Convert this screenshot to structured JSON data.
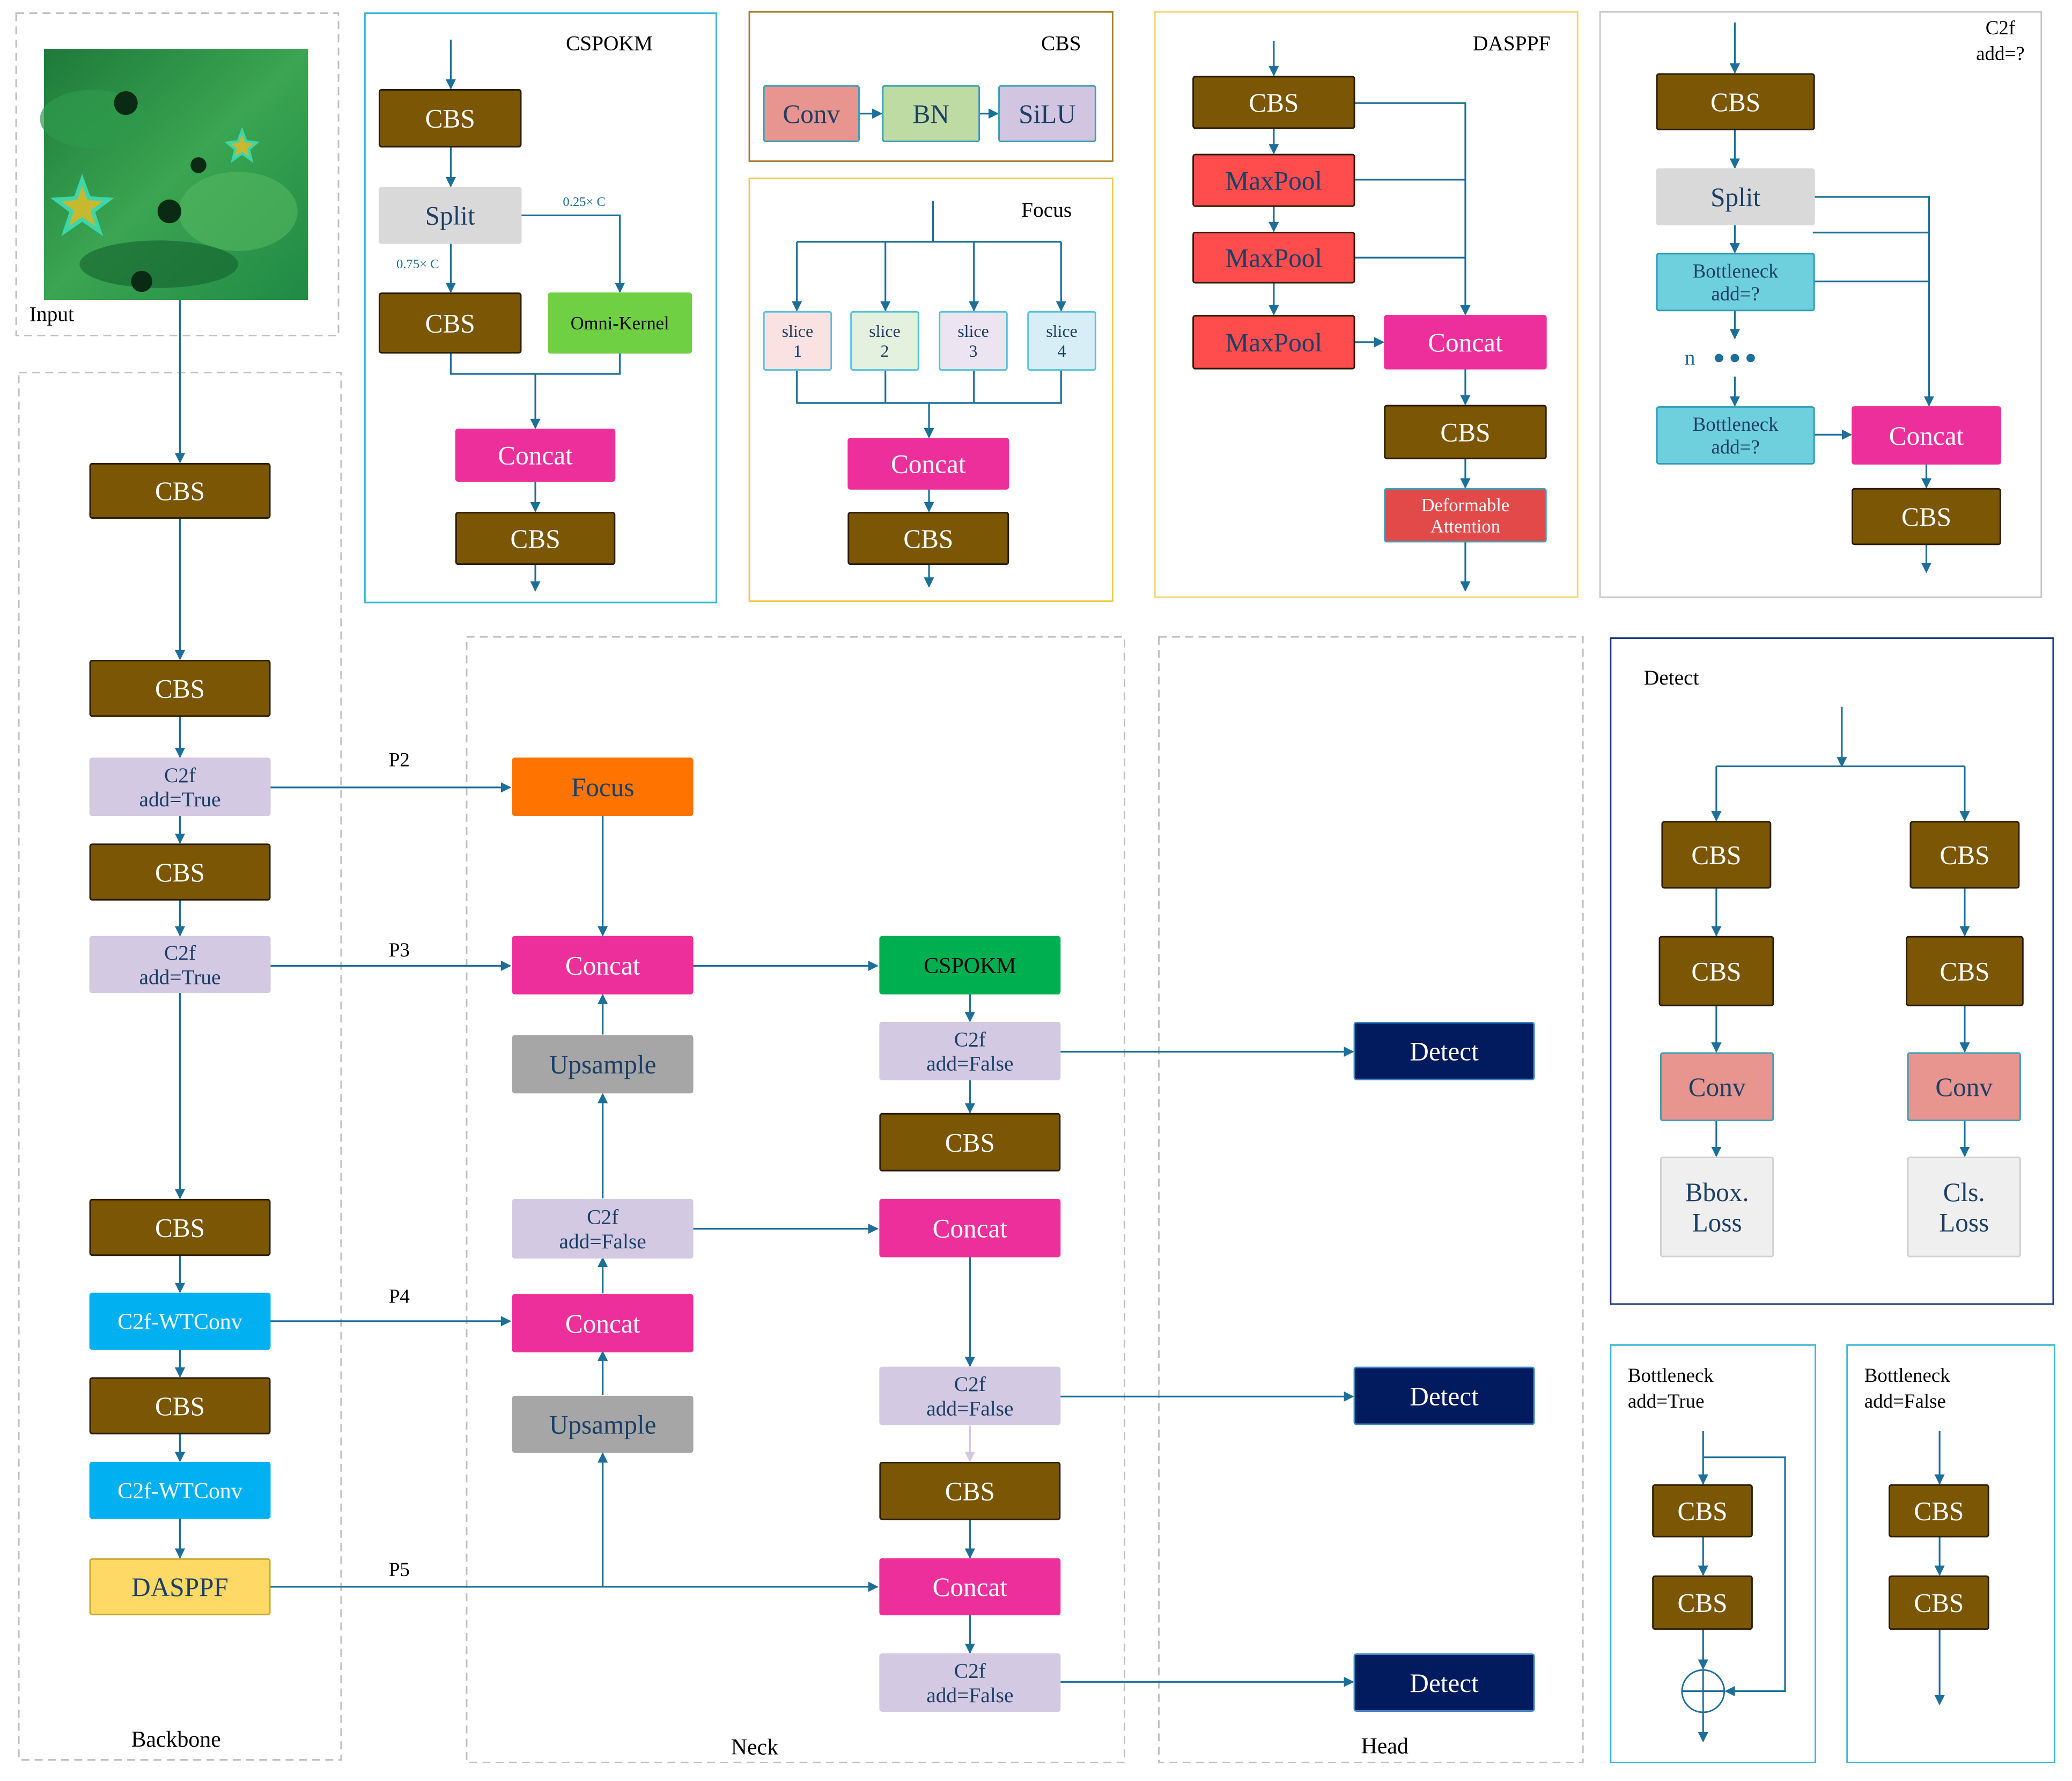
{
  "input": {
    "label": "Input"
  },
  "sections": {
    "backbone": "Backbone",
    "neck": "Neck",
    "head": "Head",
    "cspokm": "CSPOKM",
    "cbs": "CBS",
    "focus": "Focus",
    "dasppf": "DASPPF",
    "c2f": "C2f\nadd=?",
    "detect": "Detect",
    "bottleneck_true": "Bottleneck\nadd=True",
    "bottleneck_false": "Bottleneck\nadd=False"
  },
  "edge_labels": {
    "p2": "P2",
    "p3": "P3",
    "p4": "P4",
    "p5": "P5",
    "split_quarter": "0.25× C",
    "split_three_quarter": "0.75× C",
    "n": "n"
  },
  "colors": {
    "cbs": "#7b5604",
    "c2f": "#d3c9e2",
    "wtconv": "#00b0f0",
    "dasppf": "#ffd966",
    "focus": "#ff7300",
    "concat": "#ed2f9c",
    "upsample": "#a6a6a6",
    "cspokm": "#00b050",
    "detect": "#021a5e",
    "split": "#d9d9d9",
    "omni": "#70d044",
    "conv": "#e8948f",
    "bn": "#bddba3",
    "silu": "#d2c5e2",
    "maxpool": "#ff4d4d",
    "deform": "#e24a4a",
    "bottleneck": "#6ed0dc",
    "loss": "#efefef",
    "arrow": "#1c6f99"
  },
  "nodes": [
    {
      "id": "bb_cbs1",
      "text": "CBS",
      "style": "cbs",
      "name": "backbone-cbs-1"
    },
    {
      "id": "bb_cbs2",
      "text": "CBS",
      "style": "cbs",
      "name": "backbone-cbs-2"
    },
    {
      "id": "bb_c2f1",
      "text": "C2f\nadd=True",
      "style": "c2f",
      "name": "backbone-c2f-1"
    },
    {
      "id": "bb_cbs3",
      "text": "CBS",
      "style": "cbs",
      "name": "backbone-cbs-3"
    },
    {
      "id": "bb_c2f2",
      "text": "C2f\nadd=True",
      "style": "c2f",
      "name": "backbone-c2f-2"
    },
    {
      "id": "bb_cbs4",
      "text": "CBS",
      "style": "cbs",
      "name": "backbone-cbs-4"
    },
    {
      "id": "bb_wt1",
      "text": "C2f-WTConv",
      "style": "wtconv",
      "name": "backbone-c2f-wtconv-1"
    },
    {
      "id": "bb_cbs5",
      "text": "CBS",
      "style": "cbs",
      "name": "backbone-cbs-5"
    },
    {
      "id": "bb_wt2",
      "text": "C2f-WTConv",
      "style": "wtconv",
      "name": "backbone-c2f-wtconv-2"
    },
    {
      "id": "bb_dasppf",
      "text": "DASPPF",
      "style": "dasppf",
      "name": "backbone-dasppf"
    },
    {
      "id": "nk_focus",
      "text": "Focus",
      "style": "focus",
      "name": "neck-focus"
    },
    {
      "id": "nk_concat1",
      "text": "Concat",
      "style": "concat",
      "name": "neck-concat-1"
    },
    {
      "id": "nk_up1",
      "text": "Upsample",
      "style": "upsample",
      "name": "neck-upsample-1"
    },
    {
      "id": "nk_c2fa",
      "text": "C2f\nadd=False",
      "style": "c2f",
      "name": "neck-c2f-a"
    },
    {
      "id": "nk_concat2",
      "text": "Concat",
      "style": "concat",
      "name": "neck-concat-2"
    },
    {
      "id": "nk_up2",
      "text": "Upsample",
      "style": "upsample",
      "name": "neck-upsample-2"
    },
    {
      "id": "nk_cspokm",
      "text": "CSPOKM",
      "style": "cspokm",
      "name": "neck-cspokm"
    },
    {
      "id": "nk_c2fb",
      "text": "C2f\nadd=False",
      "style": "c2f",
      "name": "neck-c2f-b"
    },
    {
      "id": "nk_cbs1",
      "text": "CBS",
      "style": "cbs",
      "name": "neck-cbs-1"
    },
    {
      "id": "nk_concat3",
      "text": "Concat",
      "style": "concat",
      "name": "neck-concat-3"
    },
    {
      "id": "nk_c2fc",
      "text": "C2f\nadd=False",
      "style": "c2f",
      "name": "neck-c2f-c"
    },
    {
      "id": "nk_cbs2",
      "text": "CBS",
      "style": "cbs",
      "name": "neck-cbs-2"
    },
    {
      "id": "nk_concat4",
      "text": "Concat",
      "style": "concat",
      "name": "neck-concat-4"
    },
    {
      "id": "nk_c2fd",
      "text": "C2f\nadd=False",
      "style": "c2f",
      "name": "neck-c2f-d"
    },
    {
      "id": "hd_det1",
      "text": "Detect",
      "style": "detect",
      "name": "head-detect-1"
    },
    {
      "id": "hd_det2",
      "text": "Detect",
      "style": "detect",
      "name": "head-detect-2"
    },
    {
      "id": "hd_det3",
      "text": "Detect",
      "style": "detect",
      "name": "head-detect-3"
    },
    {
      "id": "csp_cbs1",
      "text": "CBS",
      "style": "cbs",
      "name": "cspokm-cbs-1"
    },
    {
      "id": "csp_split",
      "text": "Split",
      "style": "split",
      "name": "cspokm-split"
    },
    {
      "id": "csp_cbs2",
      "text": "CBS",
      "style": "cbs",
      "name": "cspokm-cbs-2"
    },
    {
      "id": "csp_omni",
      "text": "Omni-Kernel",
      "style": "omni",
      "name": "cspokm-omni-kernel"
    },
    {
      "id": "csp_concat",
      "text": "Concat",
      "style": "concat",
      "name": "cspokm-concat"
    },
    {
      "id": "csp_cbs3",
      "text": "CBS",
      "style": "cbs",
      "name": "cspokm-cbs-3"
    },
    {
      "id": "cbs_conv",
      "text": "Conv",
      "style": "conv",
      "name": "cbs-def-conv"
    },
    {
      "id": "cbs_bn",
      "text": "BN",
      "style": "bn",
      "name": "cbs-def-bn"
    },
    {
      "id": "cbs_silu",
      "text": "SiLU",
      "style": "silu",
      "name": "cbs-def-silu"
    },
    {
      "id": "fc_s1",
      "text": "slice\n1",
      "style": "slice1",
      "name": "focus-slice-1"
    },
    {
      "id": "fc_s2",
      "text": "slice\n2",
      "style": "slice2",
      "name": "focus-slice-2"
    },
    {
      "id": "fc_s3",
      "text": "slice\n3",
      "style": "slice3",
      "name": "focus-slice-3"
    },
    {
      "id": "fc_s4",
      "text": "slice\n4",
      "style": "slice4",
      "name": "focus-slice-4"
    },
    {
      "id": "fc_concat",
      "text": "Concat",
      "style": "concat",
      "name": "focus-concat"
    },
    {
      "id": "fc_cbs",
      "text": "CBS",
      "style": "cbs",
      "name": "focus-cbs"
    },
    {
      "id": "ds_cbs1",
      "text": "CBS",
      "style": "cbs",
      "name": "dasppf-cbs-1"
    },
    {
      "id": "ds_mp1",
      "text": "MaxPool",
      "style": "maxpool",
      "name": "dasppf-maxpool-1"
    },
    {
      "id": "ds_mp2",
      "text": "MaxPool",
      "style": "maxpool",
      "name": "dasppf-maxpool-2"
    },
    {
      "id": "ds_mp3",
      "text": "MaxPool",
      "style": "maxpool",
      "name": "dasppf-maxpool-3"
    },
    {
      "id": "ds_concat",
      "text": "Concat",
      "style": "concat",
      "name": "dasppf-concat"
    },
    {
      "id": "ds_cbs2",
      "text": "CBS",
      "style": "cbs",
      "name": "dasppf-cbs-2"
    },
    {
      "id": "ds_deform",
      "text": "Deformable\nAttention",
      "style": "deform",
      "name": "dasppf-deformable-attention"
    },
    {
      "id": "c2_cbs1",
      "text": "CBS",
      "style": "cbs",
      "name": "c2f-cbs-1"
    },
    {
      "id": "c2_split",
      "text": "Split",
      "style": "split",
      "name": "c2f-split"
    },
    {
      "id": "c2_bn1",
      "text": "Bottleneck\nadd=?",
      "style": "bottleneck",
      "name": "c2f-bottleneck-1"
    },
    {
      "id": "c2_bn2",
      "text": "Bottleneck\nadd=?",
      "style": "bottleneck",
      "name": "c2f-bottleneck-n"
    },
    {
      "id": "c2_concat",
      "text": "Concat",
      "style": "concat",
      "name": "c2f-concat"
    },
    {
      "id": "c2_cbs2",
      "text": "CBS",
      "style": "cbs",
      "name": "c2f-cbs-2"
    },
    {
      "id": "dt_cbs1",
      "text": "CBS",
      "style": "cbs",
      "name": "detect-cbs-left-1"
    },
    {
      "id": "dt_cbs2",
      "text": "CBS",
      "style": "cbs",
      "name": "detect-cbs-right-1"
    },
    {
      "id": "dt_cbs3",
      "text": "CBS",
      "style": "cbs",
      "name": "detect-cbs-left-2"
    },
    {
      "id": "dt_cbs4",
      "text": "CBS",
      "style": "cbs",
      "name": "detect-cbs-right-2"
    },
    {
      "id": "dt_conv1",
      "text": "Conv",
      "style": "conv",
      "name": "detect-conv-left"
    },
    {
      "id": "dt_conv2",
      "text": "Conv",
      "style": "conv",
      "name": "detect-conv-right"
    },
    {
      "id": "dt_bbox",
      "text": "Bbox.\nLoss",
      "style": "loss",
      "name": "detect-bbox-loss"
    },
    {
      "id": "dt_cls",
      "text": "Cls.\nLoss",
      "style": "loss",
      "name": "detect-cls-loss"
    },
    {
      "id": "bt_cbs1",
      "text": "CBS",
      "style": "cbs",
      "name": "bottleneck-true-cbs-1"
    },
    {
      "id": "bt_cbs2",
      "text": "CBS",
      "style": "cbs",
      "name": "bottleneck-true-cbs-2"
    },
    {
      "id": "bf_cbs1",
      "text": "CBS",
      "style": "cbs",
      "name": "bottleneck-false-cbs-1"
    },
    {
      "id": "bf_cbs2",
      "text": "CBS",
      "style": "cbs",
      "name": "bottleneck-false-cbs-2"
    }
  ]
}
